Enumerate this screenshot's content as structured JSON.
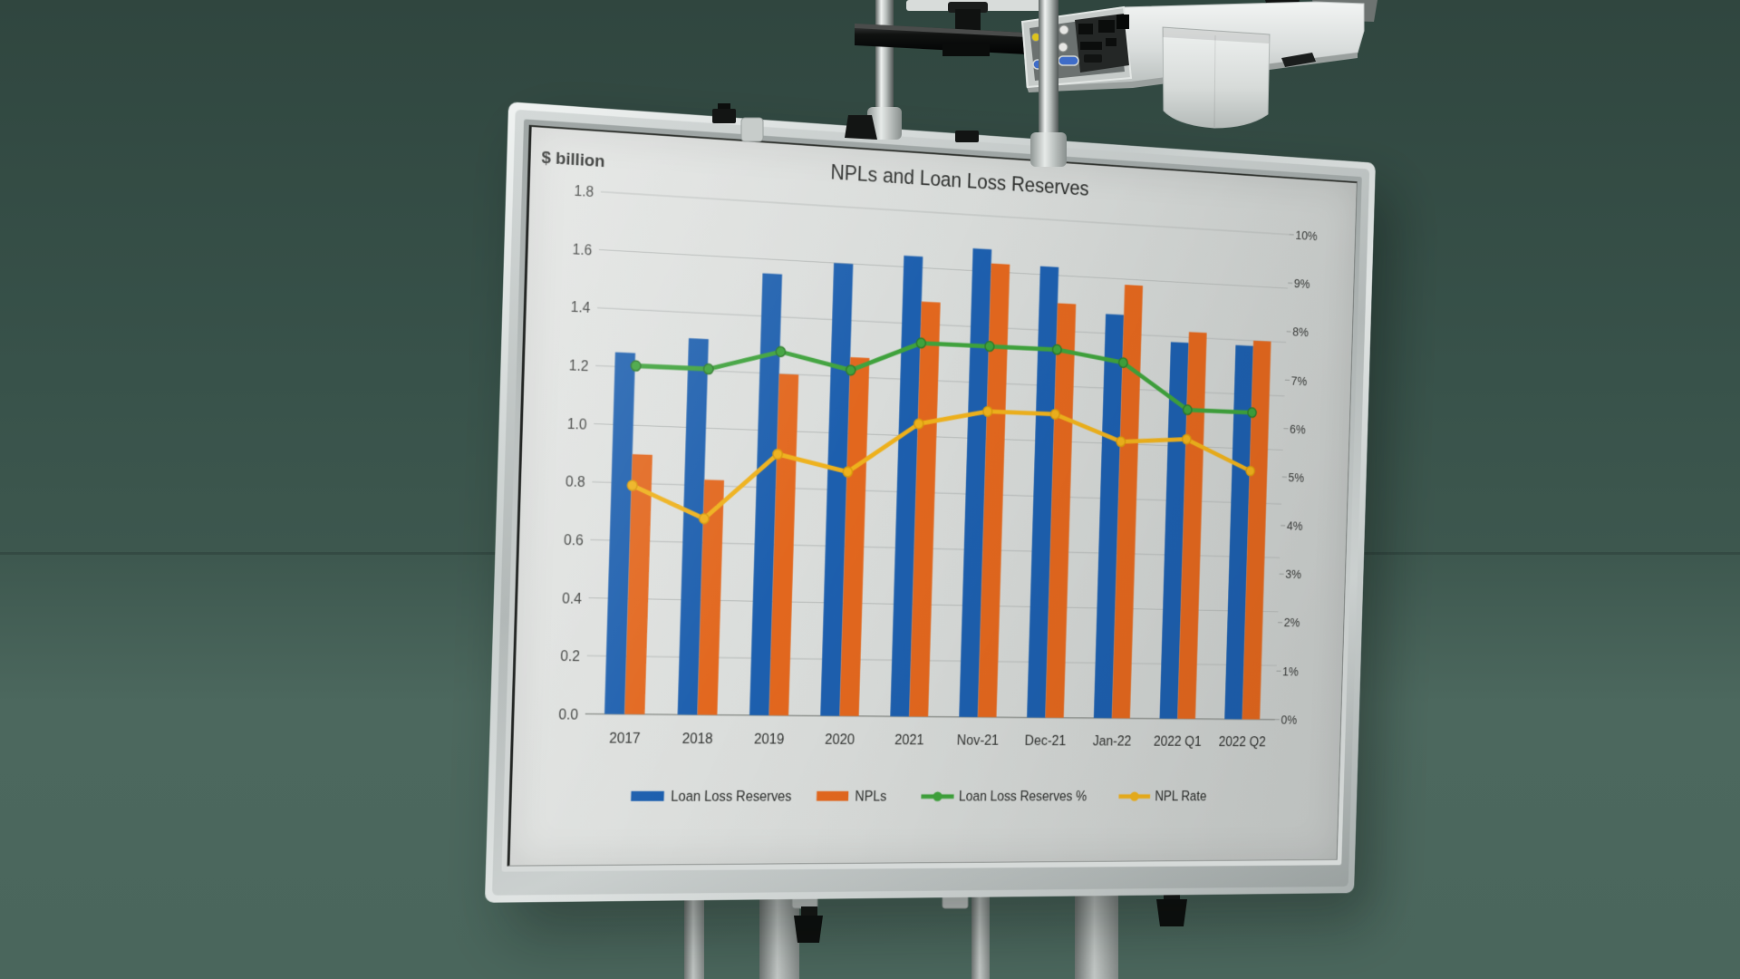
{
  "scene": {
    "background_color_top": "#30463f",
    "background_color_bottom": "#4a665c",
    "board_frame_color": "#c6cccb",
    "screen_color": "#d8dbd9"
  },
  "chart": {
    "corner_label": "$ billion",
    "title": "NPLs and Loan Loss Reserves"
  },
  "chart_data": {
    "type": "bar+line combo",
    "title": "NPLs and Loan Loss Reserves",
    "categories": [
      "2017",
      "2018",
      "2019",
      "2020",
      "2021",
      "Nov-21",
      "Dec-21",
      "Jan-22",
      "2022 Q1",
      "2022 Q2"
    ],
    "bar_series": [
      {
        "name": "Loan Loss Reserves",
        "axis": "left",
        "color": "#1d5fae",
        "values": [
          1.25,
          1.31,
          1.55,
          1.6,
          1.64,
          1.68,
          1.63,
          1.47,
          1.38,
          1.38
        ]
      },
      {
        "name": "NPLs",
        "axis": "left",
        "color": "#e2671e",
        "values": [
          0.9,
          0.82,
          1.2,
          1.27,
          1.48,
          1.63,
          1.5,
          1.58,
          1.42,
          1.4
        ]
      }
    ],
    "line_series": [
      {
        "name": "Loan Loss Reserves %",
        "axis": "right",
        "color": "#3fa23c",
        "marker_stroke": "#2d7a2b",
        "values": [
          6.7,
          6.7,
          7.1,
          6.8,
          7.4,
          7.4,
          7.4,
          7.2,
          6.3,
          6.3
        ]
      },
      {
        "name": "NPL Rate",
        "axis": "right",
        "color": "#eeb11c",
        "marker_stroke": "#d89a0c",
        "values": [
          4.4,
          3.8,
          5.1,
          4.8,
          5.8,
          6.1,
          6.1,
          5.6,
          5.7,
          5.1
        ]
      }
    ],
    "left_axis": {
      "label": "$ billion",
      "min": 0,
      "max": 1.8,
      "step": 0.2
    },
    "right_axis": {
      "min": 0,
      "max": 10,
      "step": 1,
      "tick_suffix": "%"
    },
    "grid": true,
    "legend_position": "bottom",
    "legend": [
      "Loan Loss Reserves",
      "NPLs",
      "Loan Loss Reserves %",
      "NPL Rate"
    ]
  }
}
